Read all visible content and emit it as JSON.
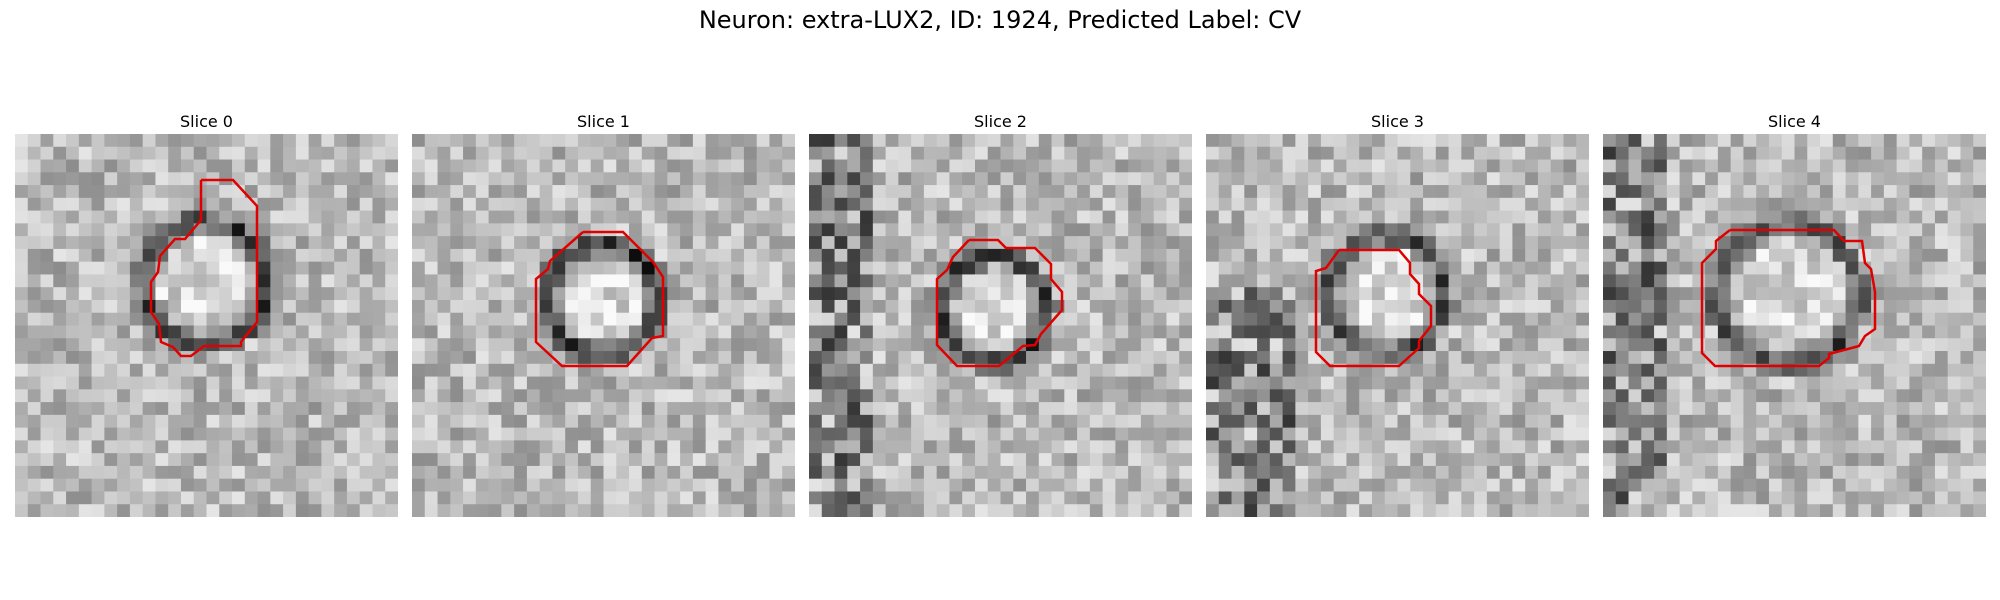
{
  "figure": {
    "title": "Neuron: extra-LUX2, ID: 1924, Predicted Label: CV"
  },
  "colors": {
    "contour": "#e00000",
    "background": "#ffffff"
  },
  "slices": [
    {
      "title": "Slice 0"
    },
    {
      "title": "Slice 1"
    },
    {
      "title": "Slice 2"
    },
    {
      "title": "Slice 3"
    },
    {
      "title": "Slice 4"
    }
  ]
}
